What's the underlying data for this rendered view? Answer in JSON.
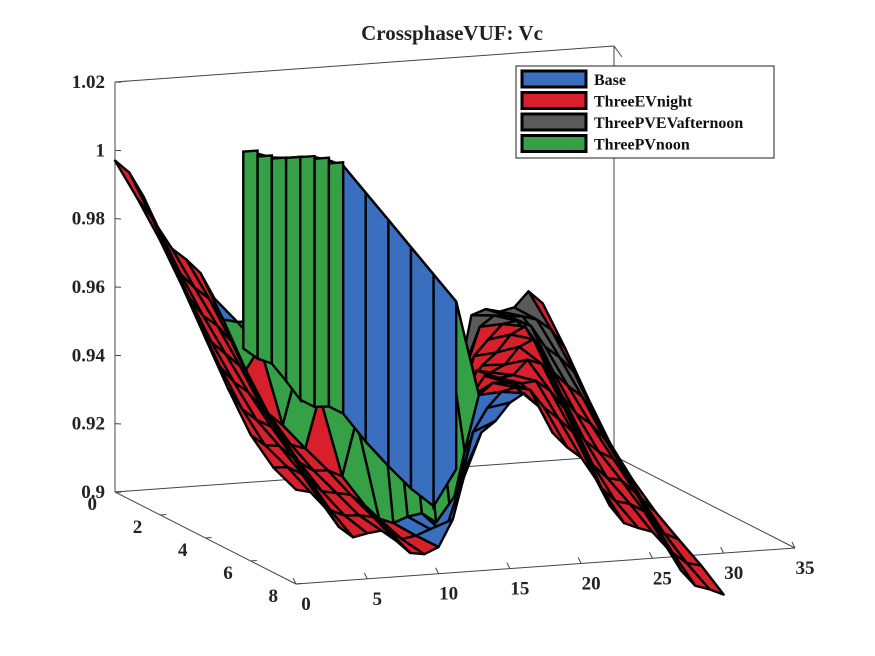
{
  "chart_data": {
    "type": "surface",
    "title": "CrossphaseVUF: Vc",
    "xlabel": "",
    "ylabel": "",
    "zlabel": "",
    "x_axis": {
      "range": [
        0,
        35
      ],
      "ticks": [
        0,
        5,
        10,
        15,
        20,
        25,
        30,
        35
      ]
    },
    "y_axis": {
      "range": [
        0,
        8
      ],
      "ticks": [
        0,
        2,
        4,
        6,
        8
      ]
    },
    "z_axis": {
      "range": [
        0.9,
        1.02
      ],
      "ticks": [
        "0.9",
        "0.92",
        "0.94",
        "0.96",
        "0.98",
        "1",
        "1.02"
      ]
    },
    "grid": false,
    "legend_position": "top-right",
    "series": [
      {
        "name": "Base",
        "color": "#3a6fc0"
      },
      {
        "name": "ThreeEVnight",
        "color": "#d7202b"
      },
      {
        "name": "ThreePVEVafternoon",
        "color": "#5a5a5a"
      },
      {
        "name": "ThreePVnoon",
        "color": "#35a046"
      }
    ]
  }
}
